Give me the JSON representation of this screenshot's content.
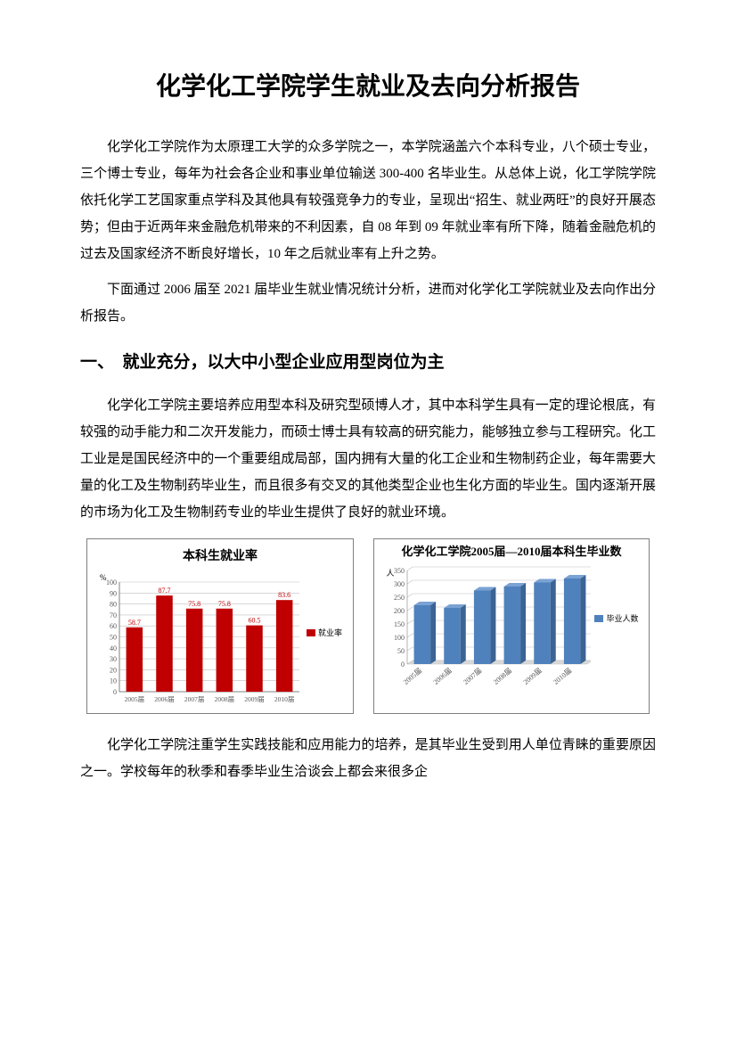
{
  "title": "化学化工学院学生就业及去向分析报告",
  "para1": "化学化工学院作为太原理工大学的众多学院之一，本学院涵盖六个本科专业，八个硕士专业，三个博士专业，每年为社会各企业和事业单位输送 300-400 名毕业生。从总体上说，化工学院学院依托化学工艺国家重点学科及其他具有较强竞争力的专业，呈现出“招生、就业两旺”的良好开展态势；但由于近两年来金融危机带来的不利因素，自 08 年到 09 年就业率有所下降，随着金融危机的过去及国家经济不断良好增长，10 年之后就业率有上升之势。",
  "para2": "下面通过 2006 届至 2021 届毕业生就业情况统计分析，进而对化学化工学院就业及去向作出分析报告。",
  "section1_heading": "一、　就业充分，以大中小型企业应用型岗位为主",
  "para3": "化学化工学院主要培养应用型本科及研究型硕博人才，其中本科学生具有一定的理论根底，有较强的动手能力和二次开发能力，而硕士博士具有较高的研究能力，能够独立参与工程研究。化工工业是是国民经济中的一个重要组成局部，国内拥有大量的化工企业和生物制药企业，每年需要大量的化工及生物制药毕业生，而且很多有交叉的其他类型企业也生化方面的毕业生。国内逐渐开展的市场为化工及生物制药专业的毕业生提供了良好的就业环境。",
  "para4": "化学化工学院注重学生实践技能和应用能力的培养，是其毕业生受到用人单位青睐的重要原因之一。学校每年的秋季和春季毕业生洽谈会上都会来很多企",
  "chart1": {
    "type": "bar",
    "title": "本科生就业率",
    "y_unit": "%",
    "categories": [
      "2005届",
      "2006届",
      "2007届",
      "2008届",
      "2009届",
      "2010届"
    ],
    "values": [
      58.7,
      87.7,
      75.8,
      75.8,
      60.5,
      83.6
    ],
    "ylim": [
      0,
      100
    ],
    "ytick_step": 10,
    "bar_color": "#c00000",
    "grid_color": "#bfbfbf",
    "axis_color": "#808080",
    "data_label_color": "#c00000",
    "background_color": "#ffffff",
    "label_fontsize": 8,
    "axis_fontsize": 8,
    "legend_label": "就业率"
  },
  "chart2": {
    "type": "bar",
    "title": "化学化工学院2005届—2010届本科生毕业数",
    "y_unit": "人",
    "categories": [
      "2005届",
      "2006届",
      "2007届",
      "2008届",
      "2009届",
      "2010届"
    ],
    "values": [
      220,
      210,
      275,
      290,
      305,
      320
    ],
    "ylim": [
      0,
      350
    ],
    "ytick_step": 50,
    "bar_color": "#4f81bd",
    "bar_side_color": "#3b6494",
    "bar_top_color": "#7aa2d4",
    "grid_color": "#bfbfbf",
    "axis_color": "#808080",
    "background_color": "#ffffff",
    "axis_fontsize": 8,
    "legend_label": "毕业人数"
  }
}
